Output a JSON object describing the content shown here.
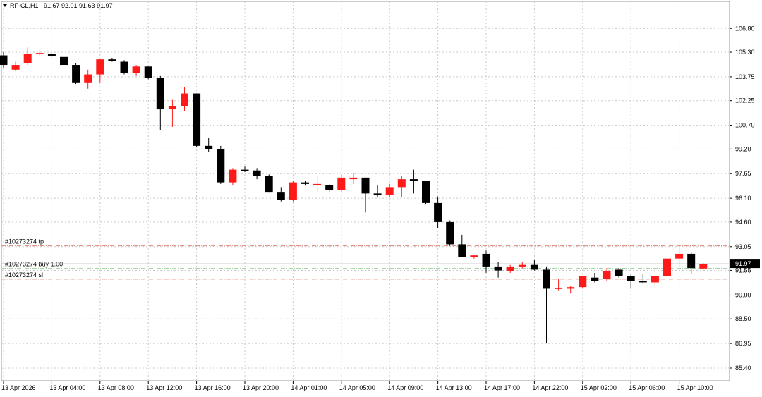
{
  "header": {
    "symbol": "RF-CL,H1",
    "ohlc": "91.67 92.01 91.63 91.97"
  },
  "chart_data": {
    "type": "candlestick",
    "ylim": [
      84.6,
      108.5
    ],
    "grid": true,
    "colors": {
      "bull": "#ff1a1a",
      "bear": "#000000",
      "grid": "#c8c8c8",
      "sl_tp_line": "#e0867a",
      "entry_line": "#9ad09a",
      "price_tag_bg": "#000000",
      "price_tag_fg": "#ffffff"
    },
    "y_ticks": [
      "106.80",
      "105.30",
      "103.75",
      "102.25",
      "100.70",
      "99.20",
      "97.65",
      "96.10",
      "94.60",
      "93.05",
      "91.55",
      "90.00",
      "88.50",
      "86.95",
      "85.40"
    ],
    "x_ticks": [
      "13 Apr 2026",
      "13 Apr 04:00",
      "13 Apr 08:00",
      "13 Apr 12:00",
      "13 Apr 16:00",
      "13 Apr 20:00",
      "14 Apr 01:00",
      "14 Apr 05:00",
      "14 Apr 09:00",
      "14 Apr 13:00",
      "14 Apr 17:00",
      "14 Apr 22:00",
      "15 Apr 02:00",
      "15 Apr 06:00",
      "15 Apr 10:00"
    ],
    "candles": [
      [
        105.1,
        105.3,
        104.3,
        104.5
      ],
      [
        104.2,
        104.7,
        104.1,
        104.5
      ],
      [
        104.6,
        105.6,
        104.5,
        105.2
      ],
      [
        105.2,
        105.4,
        105.1,
        105.25
      ],
      [
        105.2,
        105.3,
        104.95,
        105.05
      ],
      [
        105.0,
        105.1,
        104.3,
        104.5
      ],
      [
        104.5,
        104.6,
        103.3,
        103.4
      ],
      [
        103.4,
        104.2,
        103.0,
        103.9
      ],
      [
        103.9,
        104.9,
        103.4,
        104.85
      ],
      [
        104.85,
        104.95,
        104.7,
        104.75
      ],
      [
        104.7,
        104.8,
        103.9,
        104.0
      ],
      [
        104.0,
        104.5,
        103.8,
        104.4
      ],
      [
        104.4,
        104.4,
        103.6,
        103.7
      ],
      [
        103.7,
        103.8,
        100.4,
        101.7
      ],
      [
        101.7,
        102.3,
        100.6,
        101.9
      ],
      [
        101.9,
        103.1,
        101.6,
        102.7
      ],
      [
        102.7,
        102.7,
        99.3,
        99.4
      ],
      [
        99.4,
        99.9,
        99.0,
        99.2
      ],
      [
        99.2,
        99.4,
        97.0,
        97.1
      ],
      [
        97.1,
        98.0,
        96.9,
        97.9
      ],
      [
        97.9,
        98.1,
        97.75,
        97.85
      ],
      [
        97.85,
        98.0,
        97.3,
        97.5
      ],
      [
        97.5,
        97.6,
        96.5,
        96.5
      ],
      [
        96.5,
        96.8,
        95.9,
        96.0
      ],
      [
        96.0,
        97.2,
        95.9,
        97.1
      ],
      [
        97.1,
        97.2,
        96.9,
        97.0
      ],
      [
        96.95,
        97.5,
        96.5,
        97.0
      ],
      [
        96.95,
        97.0,
        96.5,
        96.6
      ],
      [
        96.6,
        97.6,
        96.5,
        97.4
      ],
      [
        97.3,
        97.7,
        97.0,
        97.4
      ],
      [
        97.4,
        97.4,
        95.2,
        96.4
      ],
      [
        96.4,
        96.9,
        96.2,
        96.3
      ],
      [
        96.3,
        97.0,
        96.2,
        96.8
      ],
      [
        96.8,
        97.5,
        96.2,
        97.3
      ],
      [
        97.3,
        97.9,
        96.4,
        97.2
      ],
      [
        97.2,
        97.2,
        95.7,
        95.8
      ],
      [
        95.8,
        96.2,
        94.2,
        94.6
      ],
      [
        94.6,
        94.7,
        93.1,
        93.2
      ],
      [
        93.2,
        93.8,
        92.4,
        92.4
      ],
      [
        92.4,
        92.5,
        92.3,
        92.5
      ],
      [
        92.6,
        92.8,
        91.4,
        91.8
      ],
      [
        91.8,
        92.1,
        91.1,
        91.55
      ],
      [
        91.5,
        91.9,
        91.4,
        91.8
      ],
      [
        91.8,
        92.1,
        91.7,
        91.9
      ],
      [
        91.9,
        92.2,
        91.55,
        91.6
      ],
      [
        91.6,
        91.8,
        86.95,
        90.4
      ],
      [
        90.4,
        91.0,
        90.3,
        90.45
      ],
      [
        90.4,
        90.6,
        90.1,
        90.5
      ],
      [
        90.5,
        91.2,
        90.4,
        91.2
      ],
      [
        91.1,
        91.4,
        90.8,
        90.9
      ],
      [
        91.0,
        91.7,
        90.9,
        91.5
      ],
      [
        91.6,
        91.7,
        91.1,
        91.2
      ],
      [
        91.2,
        91.3,
        90.4,
        90.9
      ],
      [
        90.9,
        91.3,
        90.7,
        90.8
      ],
      [
        90.8,
        91.2,
        90.5,
        91.2
      ],
      [
        91.2,
        92.6,
        91.1,
        92.3
      ],
      [
        92.3,
        93.0,
        91.8,
        92.6
      ],
      [
        92.6,
        92.7,
        91.3,
        91.7
      ],
      [
        91.67,
        92.01,
        91.63,
        91.97
      ]
    ],
    "trade": {
      "tp": {
        "label": "#10273274 tp",
        "price": 93.1
      },
      "entry": {
        "label": "#10273274 buy 1.00",
        "price": 91.68
      },
      "sl": {
        "label": "#10273274 sl",
        "price": 91.0
      }
    },
    "current_price": {
      "label": "91.97",
      "value": 91.97
    }
  }
}
